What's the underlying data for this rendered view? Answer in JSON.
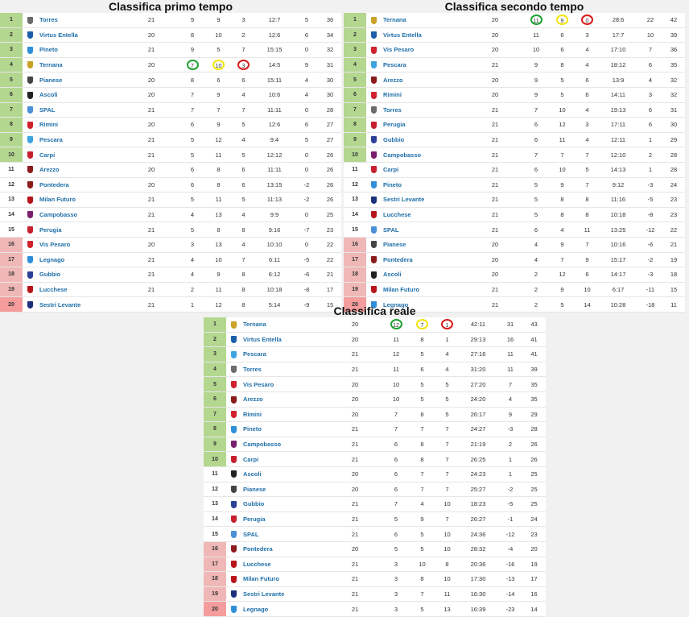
{
  "tables": [
    {
      "title": "Classifica primo tempo",
      "rows": [
        {
          "pos": "1",
          "team": "Torres",
          "crest": "#6b6b6b",
          "cells": [
            "21",
            "9",
            "9",
            "3",
            "12:7",
            "5",
            "36"
          ],
          "zone": "green"
        },
        {
          "pos": "2",
          "team": "Virtus Entella",
          "crest": "#1c5fa8",
          "cells": [
            "20",
            "8",
            "10",
            "2",
            "12:6",
            "6",
            "34"
          ],
          "zone": "green"
        },
        {
          "pos": "3",
          "team": "Pineto",
          "crest": "#2f8fd8",
          "cells": [
            "21",
            "9",
            "5",
            "7",
            "15:15",
            "0",
            "32"
          ],
          "zone": "green"
        },
        {
          "pos": "4",
          "team": "Ternana",
          "crest": "#c9a227",
          "cells": [
            "20",
            "7",
            "10",
            "3",
            "14:5",
            "9",
            "31"
          ],
          "zone": "green",
          "circled": [
            1,
            2,
            3
          ]
        },
        {
          "pos": "5",
          "team": "Pianese",
          "crest": "#444444",
          "cells": [
            "20",
            "8",
            "6",
            "6",
            "15:11",
            "4",
            "30"
          ],
          "zone": "green"
        },
        {
          "pos": "6",
          "team": "Ascoli",
          "crest": "#222222",
          "cells": [
            "20",
            "7",
            "9",
            "4",
            "10:6",
            "4",
            "30"
          ],
          "zone": "green"
        },
        {
          "pos": "7",
          "team": "SPAL",
          "crest": "#4a90d9",
          "cells": [
            "21",
            "7",
            "7",
            "7",
            "11:11",
            "0",
            "28"
          ],
          "zone": "green"
        },
        {
          "pos": "8",
          "team": "Rimini",
          "crest": "#d0212d",
          "cells": [
            "20",
            "6",
            "9",
            "5",
            "12:6",
            "6",
            "27"
          ],
          "zone": "green"
        },
        {
          "pos": "9",
          "team": "Pescara",
          "crest": "#3da4e0",
          "cells": [
            "21",
            "5",
            "12",
            "4",
            "9:4",
            "5",
            "27"
          ],
          "zone": "green"
        },
        {
          "pos": "10",
          "team": "Carpi",
          "crest": "#c8202f",
          "cells": [
            "21",
            "5",
            "11",
            "5",
            "12:12",
            "0",
            "26"
          ],
          "zone": "green"
        },
        {
          "pos": "11",
          "team": "Arezzo",
          "crest": "#8b1a1a",
          "cells": [
            "20",
            "6",
            "8",
            "6",
            "11:11",
            "0",
            "26"
          ],
          "zone": "white"
        },
        {
          "pos": "12",
          "team": "Pontedera",
          "crest": "#8b1a1a",
          "cells": [
            "20",
            "6",
            "8",
            "6",
            "13:15",
            "-2",
            "26"
          ],
          "zone": "white"
        },
        {
          "pos": "13",
          "team": "Milan Futuro",
          "crest": "#b8141b",
          "cells": [
            "21",
            "5",
            "11",
            "5",
            "11:13",
            "-2",
            "26"
          ],
          "zone": "white"
        },
        {
          "pos": "14",
          "team": "Campobasso",
          "crest": "#7a1f6e",
          "cells": [
            "21",
            "4",
            "13",
            "4",
            "9:9",
            "0",
            "25"
          ],
          "zone": "white"
        },
        {
          "pos": "15",
          "team": "Perugia",
          "crest": "#c8202f",
          "cells": [
            "21",
            "5",
            "8",
            "8",
            "9:16",
            "-7",
            "23"
          ],
          "zone": "white"
        },
        {
          "pos": "16",
          "team": "Vis Pesaro",
          "crest": "#d0212d",
          "cells": [
            "20",
            "3",
            "13",
            "4",
            "10:10",
            "0",
            "22"
          ],
          "zone": "red"
        },
        {
          "pos": "17",
          "team": "Legnago",
          "crest": "#2f8fd8",
          "cells": [
            "21",
            "4",
            "10",
            "7",
            "6:11",
            "-5",
            "22"
          ],
          "zone": "red"
        },
        {
          "pos": "18",
          "team": "Gubbio",
          "crest": "#2b3f96",
          "cells": [
            "21",
            "4",
            "9",
            "8",
            "6:12",
            "-6",
            "21"
          ],
          "zone": "red"
        },
        {
          "pos": "19",
          "team": "Lucchese",
          "crest": "#b8141b",
          "cells": [
            "21",
            "2",
            "11",
            "8",
            "10:18",
            "-8",
            "17"
          ],
          "zone": "red"
        },
        {
          "pos": "20",
          "team": "Sestri Levante",
          "crest": "#1c2f7a",
          "cells": [
            "21",
            "1",
            "12",
            "8",
            "5:14",
            "-9",
            "15"
          ],
          "zone": "red20"
        }
      ]
    },
    {
      "title": "Classifica secondo tempo",
      "rows": [
        {
          "pos": "1",
          "team": "Ternana",
          "crest": "#c9a227",
          "cells": [
            "20",
            "11",
            "9",
            "0",
            "28:6",
            "22",
            "42"
          ],
          "zone": "green",
          "circled": [
            1,
            2,
            3
          ]
        },
        {
          "pos": "2",
          "team": "Virtus Entella",
          "crest": "#1c5fa8",
          "cells": [
            "20",
            "11",
            "6",
            "3",
            "17:7",
            "10",
            "39"
          ],
          "zone": "green"
        },
        {
          "pos": "3",
          "team": "Vis Pesaro",
          "crest": "#d0212d",
          "cells": [
            "20",
            "10",
            "6",
            "4",
            "17:10",
            "7",
            "36"
          ],
          "zone": "green"
        },
        {
          "pos": "4",
          "team": "Pescara",
          "crest": "#3da4e0",
          "cells": [
            "21",
            "9",
            "8",
            "4",
            "18:12",
            "6",
            "35"
          ],
          "zone": "green"
        },
        {
          "pos": "5",
          "team": "Arezzo",
          "crest": "#8b1a1a",
          "cells": [
            "20",
            "9",
            "5",
            "6",
            "13:9",
            "4",
            "32"
          ],
          "zone": "green"
        },
        {
          "pos": "6",
          "team": "Rimini",
          "crest": "#d0212d",
          "cells": [
            "20",
            "9",
            "5",
            "6",
            "14:11",
            "3",
            "32"
          ],
          "zone": "green"
        },
        {
          "pos": "7",
          "team": "Torres",
          "crest": "#6b6b6b",
          "cells": [
            "21",
            "7",
            "10",
            "4",
            "19:13",
            "6",
            "31"
          ],
          "zone": "green"
        },
        {
          "pos": "8",
          "team": "Perugia",
          "crest": "#c8202f",
          "cells": [
            "21",
            "6",
            "12",
            "3",
            "17:11",
            "6",
            "30"
          ],
          "zone": "green"
        },
        {
          "pos": "9",
          "team": "Gubbio",
          "crest": "#2b3f96",
          "cells": [
            "21",
            "6",
            "11",
            "4",
            "12:11",
            "1",
            "29"
          ],
          "zone": "green"
        },
        {
          "pos": "10",
          "team": "Campobasso",
          "crest": "#7a1f6e",
          "cells": [
            "21",
            "7",
            "7",
            "7",
            "12:10",
            "2",
            "28"
          ],
          "zone": "green"
        },
        {
          "pos": "11",
          "team": "Carpi",
          "crest": "#c8202f",
          "cells": [
            "21",
            "6",
            "10",
            "5",
            "14:13",
            "1",
            "28"
          ],
          "zone": "white"
        },
        {
          "pos": "12",
          "team": "Pineto",
          "crest": "#2f8fd8",
          "cells": [
            "21",
            "5",
            "9",
            "7",
            "9:12",
            "-3",
            "24"
          ],
          "zone": "white"
        },
        {
          "pos": "13",
          "team": "Sestri Levante",
          "crest": "#1c2f7a",
          "cells": [
            "21",
            "5",
            "8",
            "8",
            "11:16",
            "-5",
            "23"
          ],
          "zone": "white"
        },
        {
          "pos": "14",
          "team": "Lucchese",
          "crest": "#b8141b",
          "cells": [
            "21",
            "5",
            "8",
            "8",
            "10:18",
            "-8",
            "23"
          ],
          "zone": "white"
        },
        {
          "pos": "15",
          "team": "SPAL",
          "crest": "#4a90d9",
          "cells": [
            "21",
            "6",
            "4",
            "11",
            "13:25",
            "-12",
            "22"
          ],
          "zone": "white"
        },
        {
          "pos": "16",
          "team": "Pianese",
          "crest": "#444444",
          "cells": [
            "20",
            "4",
            "9",
            "7",
            "10:16",
            "-6",
            "21"
          ],
          "zone": "red"
        },
        {
          "pos": "17",
          "team": "Pontedera",
          "crest": "#8b1a1a",
          "cells": [
            "20",
            "4",
            "7",
            "9",
            "15:17",
            "-2",
            "19"
          ],
          "zone": "red"
        },
        {
          "pos": "18",
          "team": "Ascoli",
          "crest": "#222222",
          "cells": [
            "20",
            "2",
            "12",
            "6",
            "14:17",
            "-3",
            "18"
          ],
          "zone": "red"
        },
        {
          "pos": "19",
          "team": "Milan Futuro",
          "crest": "#b8141b",
          "cells": [
            "21",
            "2",
            "9",
            "10",
            "6:17",
            "-11",
            "15"
          ],
          "zone": "red"
        },
        {
          "pos": "20",
          "team": "Legnago",
          "crest": "#2f8fd8",
          "cells": [
            "21",
            "2",
            "5",
            "14",
            "10:28",
            "-18",
            "11"
          ],
          "zone": "red20"
        }
      ]
    },
    {
      "title": "Classifica reale",
      "rows": [
        {
          "pos": "1",
          "team": "Ternana",
          "crest": "#c9a227",
          "cells": [
            "20",
            "12",
            "7",
            "1",
            "42:11",
            "31",
            "43"
          ],
          "zone": "green",
          "circled": [
            1,
            2,
            3
          ]
        },
        {
          "pos": "2",
          "team": "Virtus Entella",
          "crest": "#1c5fa8",
          "cells": [
            "20",
            "11",
            "8",
            "1",
            "29:13",
            "16",
            "41"
          ],
          "zone": "green"
        },
        {
          "pos": "3",
          "team": "Pescara",
          "crest": "#3da4e0",
          "cells": [
            "21",
            "12",
            "5",
            "4",
            "27:16",
            "11",
            "41"
          ],
          "zone": "green"
        },
        {
          "pos": "4",
          "team": "Torres",
          "crest": "#6b6b6b",
          "cells": [
            "21",
            "11",
            "6",
            "4",
            "31:20",
            "11",
            "39"
          ],
          "zone": "green"
        },
        {
          "pos": "5",
          "team": "Vis Pesaro",
          "crest": "#d0212d",
          "cells": [
            "20",
            "10",
            "5",
            "5",
            "27:20",
            "7",
            "35"
          ],
          "zone": "green"
        },
        {
          "pos": "6",
          "team": "Arezzo",
          "crest": "#8b1a1a",
          "cells": [
            "20",
            "10",
            "5",
            "5",
            "24:20",
            "4",
            "35"
          ],
          "zone": "green"
        },
        {
          "pos": "7",
          "team": "Rimini",
          "crest": "#d0212d",
          "cells": [
            "20",
            "7",
            "8",
            "5",
            "26:17",
            "9",
            "29"
          ],
          "zone": "green"
        },
        {
          "pos": "8",
          "team": "Pineto",
          "crest": "#2f8fd8",
          "cells": [
            "21",
            "7",
            "7",
            "7",
            "24:27",
            "-3",
            "28"
          ],
          "zone": "green"
        },
        {
          "pos": "9",
          "team": "Campobasso",
          "crest": "#7a1f6e",
          "cells": [
            "21",
            "6",
            "8",
            "7",
            "21:19",
            "2",
            "26"
          ],
          "zone": "green"
        },
        {
          "pos": "10",
          "team": "Carpi",
          "crest": "#c8202f",
          "cells": [
            "21",
            "6",
            "8",
            "7",
            "26:25",
            "1",
            "26"
          ],
          "zone": "green"
        },
        {
          "pos": "11",
          "team": "Ascoli",
          "crest": "#222222",
          "cells": [
            "20",
            "6",
            "7",
            "7",
            "24:23",
            "1",
            "25"
          ],
          "zone": "white"
        },
        {
          "pos": "12",
          "team": "Pianese",
          "crest": "#444444",
          "cells": [
            "20",
            "6",
            "7",
            "7",
            "25:27",
            "-2",
            "25"
          ],
          "zone": "white"
        },
        {
          "pos": "13",
          "team": "Gubbio",
          "crest": "#2b3f96",
          "cells": [
            "21",
            "7",
            "4",
            "10",
            "18:23",
            "-5",
            "25"
          ],
          "zone": "white"
        },
        {
          "pos": "14",
          "team": "Perugia",
          "crest": "#c8202f",
          "cells": [
            "21",
            "5",
            "9",
            "7",
            "26:27",
            "-1",
            "24"
          ],
          "zone": "white"
        },
        {
          "pos": "15",
          "team": "SPAL",
          "crest": "#4a90d9",
          "cells": [
            "21",
            "6",
            "5",
            "10",
            "24:36",
            "-12",
            "23"
          ],
          "zone": "white"
        },
        {
          "pos": "16",
          "team": "Pontedera",
          "crest": "#8b1a1a",
          "cells": [
            "20",
            "5",
            "5",
            "10",
            "28:32",
            "-4",
            "20"
          ],
          "zone": "red"
        },
        {
          "pos": "17",
          "team": "Lucchese",
          "crest": "#b8141b",
          "cells": [
            "21",
            "3",
            "10",
            "8",
            "20:36",
            "-16",
            "19"
          ],
          "zone": "red"
        },
        {
          "pos": "18",
          "team": "Milan Futuro",
          "crest": "#b8141b",
          "cells": [
            "21",
            "3",
            "8",
            "10",
            "17:30",
            "-13",
            "17"
          ],
          "zone": "red"
        },
        {
          "pos": "19",
          "team": "Sestri Levante",
          "crest": "#1c2f7a",
          "cells": [
            "21",
            "3",
            "7",
            "11",
            "16:30",
            "-14",
            "16"
          ],
          "zone": "red"
        },
        {
          "pos": "20",
          "team": "Legnago",
          "crest": "#2f8fd8",
          "cells": [
            "21",
            "3",
            "5",
            "13",
            "16:39",
            "-23",
            "14"
          ],
          "zone": "red20"
        }
      ]
    }
  ],
  "colors": {
    "promotion": "#b4d790",
    "relegation": "#f0b7b7",
    "last": "#f59c9c",
    "circle_wins": "#1fa032",
    "circle_draws": "#f2e312",
    "circle_losses": "#d81b1b",
    "team_link": "#1f6fa8"
  },
  "icons": {
    "crest": "team-crest-icon"
  }
}
